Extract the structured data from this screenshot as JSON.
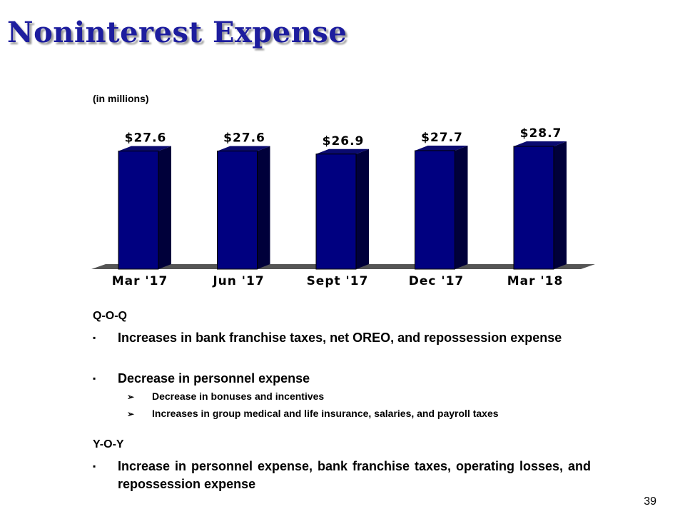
{
  "title": "Noninterest Expense",
  "unit_note": "(in millions)",
  "chart_data": {
    "type": "bar",
    "categories": [
      "Mar '17",
      "Jun '17",
      "Sept '17",
      "Dec '17",
      "Mar '18"
    ],
    "values": [
      27.6,
      27.6,
      26.9,
      27.7,
      28.7
    ],
    "data_labels": [
      "$27.6",
      "$27.6",
      "$26.9",
      "$27.7",
      "$28.7"
    ],
    "ylim": [
      0,
      28.7
    ],
    "bar_color": "#000080",
    "bar_side_color": "#00003a",
    "bar_top_color": "#0a0a70",
    "floor_color": "#555555",
    "grid": false
  },
  "qoq": {
    "heading": "Q-O-Q",
    "bullets": [
      {
        "mark": "▪",
        "text": "Increases in bank franchise taxes, net OREO, and repossession expense"
      },
      {
        "mark": "▪",
        "text": "Decrease in personnel expense"
      }
    ],
    "sub_bullets": [
      {
        "mark": "➢",
        "text": "Decrease in bonuses and incentives"
      },
      {
        "mark": "➢",
        "text": "Increases in group medical and life insurance, salaries, and payroll taxes"
      }
    ]
  },
  "yoy": {
    "heading": "Y-O-Y",
    "bullets": [
      {
        "mark": "▪",
        "text": "Increase in personnel expense, bank franchise taxes, operating losses, and repossession expense"
      }
    ]
  },
  "page_number": "39"
}
